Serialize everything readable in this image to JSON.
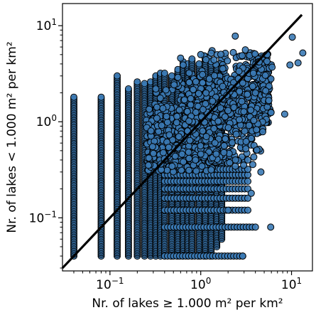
{
  "chart_data": {
    "type": "scatter",
    "title": "",
    "xlabel": "Nr. of lakes ≥ 1.000 m² per km²",
    "ylabel": "Nr. of lakes < 1.000 m² per km²",
    "xscale": "log",
    "yscale": "log",
    "xlim": [
      0.03,
      17
    ],
    "ylim": [
      0.028,
      17
    ],
    "grid": false,
    "legend": "none",
    "colors": {
      "point_fill": "#3b7ab5",
      "point_edge": "#000000",
      "line": "#000000"
    },
    "x_ticks": [
      {
        "value": 0.1,
        "base": "10",
        "exp": "−1"
      },
      {
        "value": 1,
        "base": "10",
        "exp": "0"
      },
      {
        "value": 10,
        "base": "10",
        "exp": "1"
      }
    ],
    "y_ticks": [
      {
        "value": 0.1,
        "base": "10",
        "exp": "−1"
      },
      {
        "value": 1,
        "base": "10",
        "exp": "0"
      },
      {
        "value": 10,
        "base": "10",
        "exp": "1"
      }
    ],
    "reference_line": {
      "type": "y=x",
      "x": [
        0.03,
        13
      ],
      "y": [
        0.03,
        13
      ]
    },
    "columns": [
      {
        "x": 0.04,
        "ymin": 0.04,
        "ymax": 1.8
      },
      {
        "x": 0.08,
        "ymin": 0.04,
        "ymax": 1.8
      },
      {
        "x": 0.12,
        "ymin": 0.04,
        "ymax": 3.0
      },
      {
        "x": 0.16,
        "ymin": 0.04,
        "ymax": 2.2
      },
      {
        "x": 0.2,
        "ymin": 0.04,
        "ymax": 2.6
      },
      {
        "x": 0.24,
        "ymin": 0.04,
        "ymax": 2.5
      },
      {
        "x": 0.28,
        "ymin": 0.04,
        "ymax": 2.6
      },
      {
        "x": 0.32,
        "ymin": 0.04,
        "ymax": 3.0
      },
      {
        "x": 0.36,
        "ymin": 0.04,
        "ymax": 3.2
      },
      {
        "x": 0.4,
        "ymin": 0.04,
        "ymax": 3.2
      },
      {
        "x": 0.48,
        "ymin": 0.04,
        "ymax": 3.0
      },
      {
        "x": 0.56,
        "ymin": 0.04,
        "ymax": 3.5
      },
      {
        "x": 0.64,
        "ymin": 0.04,
        "ymax": 4.2
      },
      {
        "x": 0.72,
        "ymin": 0.04,
        "ymax": 4.0
      },
      {
        "x": 0.8,
        "ymin": 0.04,
        "ymax": 4.5
      },
      {
        "x": 0.96,
        "ymin": 0.04,
        "ymax": 4.0
      },
      {
        "x": 1.12,
        "ymin": 0.04,
        "ymax": 4.8
      },
      {
        "x": 1.3,
        "ymin": 0.04,
        "ymax": 4.0
      },
      {
        "x": 1.5,
        "ymin": 0.05,
        "ymax": 3.8
      },
      {
        "x": 1.7,
        "ymin": 0.06,
        "ymax": 4.5
      }
    ],
    "rows_y": [
      0.04,
      0.08,
      0.12,
      0.16,
      0.2,
      0.24,
      0.28,
      0.32,
      0.4
    ],
    "cloud": {
      "xmin": 0.25,
      "xmax": 6.0,
      "ymin": 0.3,
      "ymax": 5.5
    },
    "extra_points": [
      [
        2.4,
        7.8
      ],
      [
        3.1,
        5.6
      ],
      [
        5.4,
        5.0
      ],
      [
        6.1,
        3.7
      ],
      [
        10.2,
        7.6
      ],
      [
        13.3,
        5.2
      ],
      [
        8.4,
        1.2
      ],
      [
        5.9,
        0.08
      ],
      [
        2.9,
        0.04
      ],
      [
        4.6,
        0.3
      ],
      [
        3.6,
        0.18
      ],
      [
        2.0,
        0.12
      ],
      [
        1.0,
        5.0
      ],
      [
        0.6,
        4.6
      ],
      [
        4.4,
        4.2
      ],
      [
        2.6,
        2.8
      ],
      [
        3.8,
        3.2
      ],
      [
        11.8,
        4.1
      ],
      [
        9.6,
        3.9
      ],
      [
        5.2,
        2.1
      ],
      [
        0.32,
        2.2
      ],
      [
        0.56,
        2.9
      ],
      [
        0.64,
        3.9
      ],
      [
        1.4,
        4.4
      ],
      [
        4.0,
        2.0
      ]
    ]
  }
}
